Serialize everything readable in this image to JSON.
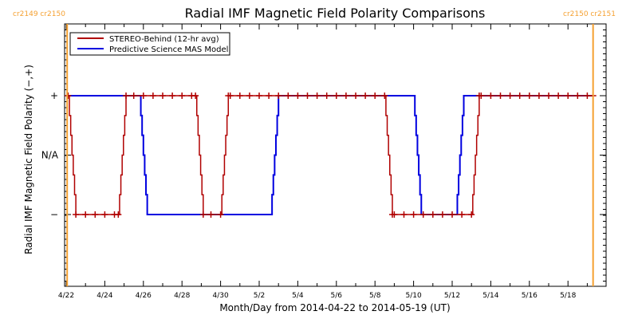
{
  "chart_data": {
    "type": "line",
    "title": "Radial IMF Magnetic Field Polarity Comparisons",
    "xlabel": "Month/Day from 2014-04-22 to 2014-05-19 (UT)",
    "ylabel": "Radial IMF Magnetic Field Polarity (−,+)",
    "x_unit": "days since 2014-04-22",
    "xlim": [
      -0.05,
      27.6
    ],
    "x_ticks": [
      {
        "day": 0,
        "label": "4/22"
      },
      {
        "day": 2,
        "label": "4/24"
      },
      {
        "day": 4,
        "label": "4/26"
      },
      {
        "day": 6,
        "label": "4/28"
      },
      {
        "day": 8,
        "label": "4/30"
      },
      {
        "day": 10,
        "label": "5/2"
      },
      {
        "day": 12,
        "label": "5/4"
      },
      {
        "day": 14,
        "label": "5/6"
      },
      {
        "day": 16,
        "label": "5/8"
      },
      {
        "day": 18,
        "label": "5/10"
      },
      {
        "day": 20,
        "label": "5/12"
      },
      {
        "day": 22,
        "label": "5/14"
      },
      {
        "day": 24,
        "label": "5/16"
      },
      {
        "day": 26,
        "label": "5/18"
      }
    ],
    "y_levels": [
      {
        "value": 1,
        "label": "+"
      },
      {
        "value": 0,
        "label": "N/A"
      },
      {
        "value": -1,
        "label": "−"
      }
    ],
    "ylim": [
      -1.55,
      1.55
    ],
    "carrington_markers": [
      {
        "day": 0.05,
        "label_left": "cr2149",
        "label_right": "cr2150",
        "position": "top-left"
      },
      {
        "day": 27.3,
        "label_left": "cr2150",
        "label_right": "cr2151",
        "position": "top-right"
      }
    ],
    "legend": {
      "placement": "top-left"
    },
    "series": [
      {
        "name": "STEREO-Behind (12-hr avg)",
        "color": "#b00000",
        "markers": "plus",
        "segments": [
          {
            "from": 0.1,
            "to": 0.5,
            "value": 1,
            "transition": "ramp"
          },
          {
            "from": 0.5,
            "to": 2.7,
            "value": -1
          },
          {
            "from": 3.1,
            "to": 6.7,
            "value": 1
          },
          {
            "from": 7.1,
            "to": 8.0,
            "value": -1
          },
          {
            "from": 8.4,
            "to": 16.5,
            "value": 1
          },
          {
            "from": 16.9,
            "to": 21.0,
            "value": -1
          },
          {
            "from": 21.4,
            "to": 27.3,
            "value": 1
          }
        ],
        "points": [
          [
            0.1,
            1
          ],
          [
            0.5,
            -1
          ],
          [
            1.0,
            -1
          ],
          [
            1.5,
            -1
          ],
          [
            2.0,
            -1
          ],
          [
            2.5,
            -1
          ],
          [
            2.7,
            -1
          ],
          [
            3.1,
            1
          ],
          [
            3.5,
            1
          ],
          [
            4.0,
            1
          ],
          [
            4.5,
            1
          ],
          [
            5.0,
            1
          ],
          [
            5.5,
            1
          ],
          [
            6.0,
            1
          ],
          [
            6.5,
            1
          ],
          [
            6.7,
            1
          ],
          [
            7.1,
            -1
          ],
          [
            7.5,
            -1
          ],
          [
            8.0,
            -1
          ],
          [
            8.4,
            1
          ],
          [
            8.5,
            1
          ],
          [
            9.0,
            1
          ],
          [
            9.5,
            1
          ],
          [
            10.0,
            1
          ],
          [
            10.5,
            1
          ],
          [
            11.0,
            1
          ],
          [
            11.5,
            1
          ],
          [
            12.0,
            1
          ],
          [
            12.5,
            1
          ],
          [
            13.0,
            1
          ],
          [
            13.5,
            1
          ],
          [
            14.0,
            1
          ],
          [
            14.5,
            1
          ],
          [
            15.0,
            1
          ],
          [
            15.5,
            1
          ],
          [
            16.0,
            1
          ],
          [
            16.5,
            1
          ],
          [
            16.9,
            -1
          ],
          [
            17.0,
            -1
          ],
          [
            17.5,
            -1
          ],
          [
            18.0,
            -1
          ],
          [
            18.5,
            -1
          ],
          [
            19.0,
            -1
          ],
          [
            19.5,
            -1
          ],
          [
            20.0,
            -1
          ],
          [
            20.5,
            -1
          ],
          [
            21.0,
            -1
          ],
          [
            21.4,
            1
          ],
          [
            21.5,
            1
          ],
          [
            22.0,
            1
          ],
          [
            22.5,
            1
          ],
          [
            23.0,
            1
          ],
          [
            23.5,
            1
          ],
          [
            24.0,
            1
          ],
          [
            24.5,
            1
          ],
          [
            25.0,
            1
          ],
          [
            25.5,
            1
          ],
          [
            26.0,
            1
          ],
          [
            26.5,
            1
          ],
          [
            27.0,
            1
          ],
          [
            27.3,
            1
          ]
        ]
      },
      {
        "name": "Predictive Science MAS Model",
        "color": "#0000e0",
        "markers": "none",
        "points": [
          [
            0.0,
            1
          ],
          [
            3.8,
            1
          ],
          [
            4.2,
            -1
          ],
          [
            10.6,
            -1
          ],
          [
            11.0,
            1
          ],
          [
            18.0,
            1
          ],
          [
            18.4,
            -1
          ],
          [
            20.2,
            -1
          ],
          [
            20.6,
            1
          ],
          [
            27.3,
            1
          ]
        ]
      }
    ]
  }
}
